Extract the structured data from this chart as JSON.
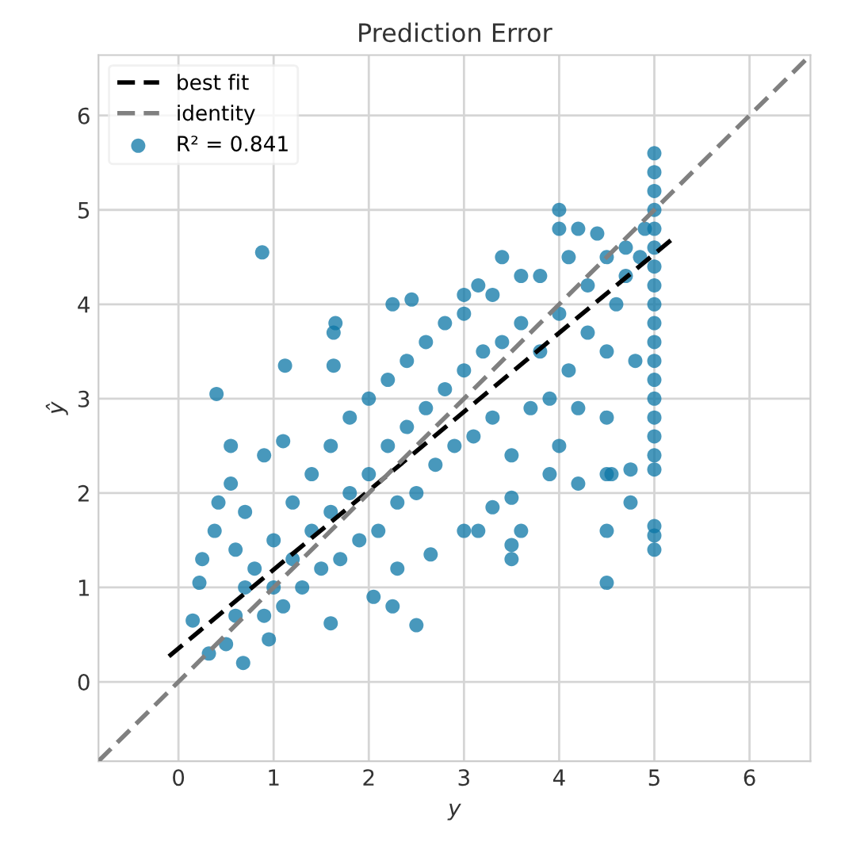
{
  "chart_data": {
    "type": "scatter",
    "title": "Prediction Error",
    "xlabel": "y",
    "ylabel": "ŷ",
    "xlim": [
      -0.84,
      6.64
    ],
    "ylim": [
      -0.84,
      6.64
    ],
    "xticks": [
      0,
      1,
      2,
      3,
      4,
      5,
      6
    ],
    "yticks": [
      0,
      1,
      2,
      3,
      4,
      5,
      6
    ],
    "grid": true,
    "legend": "top left",
    "series": [
      {
        "type": "line",
        "name": "best fit",
        "color": "#000000",
        "line_style": "dashed",
        "x": [
          -0.1,
          5.2
        ],
        "values": [
          0.27,
          4.7
        ]
      },
      {
        "type": "line",
        "name": "identity",
        "color": "#808080",
        "line_style": "dashed",
        "x": [
          -0.84,
          6.64
        ],
        "values": [
          -0.84,
          6.64
        ]
      },
      {
        "name": "R² = 0.841",
        "color": "#0b76a5",
        "marker": "circle",
        "x": [
          0.88,
          0.4,
          1.12,
          0.55,
          0.9,
          1.1,
          0.55,
          0.42,
          0.38,
          0.25,
          0.22,
          0.15,
          0.32,
          0.68,
          0.95,
          1.6,
          2.5,
          2.25,
          2.05,
          1.65,
          1.63,
          1.63,
          2.25,
          2.45,
          3.0,
          3.15,
          3.4,
          4.0,
          4.0,
          4.2,
          4.4,
          4.5,
          4.7,
          3.0,
          3.15,
          3.5,
          3.5,
          3.6,
          3.5,
          4.5,
          4.5,
          4.5,
          4.55,
          4.75,
          4.75,
          4.2,
          3.9,
          4.0,
          4.5,
          3.3,
          2.65,
          2.3,
          5,
          5,
          5,
          5,
          5,
          5,
          5,
          5,
          5,
          5,
          5,
          5,
          5,
          5,
          5,
          5,
          5,
          5,
          5,
          5,
          5,
          0.5,
          0.6,
          0.7,
          0.6,
          0.7,
          0.8,
          0.9,
          1.0,
          1.0,
          1.1,
          1.2,
          1.2,
          1.3,
          1.4,
          1.4,
          1.5,
          1.6,
          1.6,
          1.7,
          1.8,
          1.8,
          1.9,
          2.0,
          2.0,
          2.1,
          2.2,
          2.2,
          2.3,
          2.4,
          2.4,
          2.5,
          2.6,
          2.6,
          2.7,
          2.8,
          2.8,
          2.9,
          3.0,
          3.0,
          3.1,
          3.2,
          3.3,
          3.3,
          3.4,
          3.5,
          3.6,
          3.6,
          3.7,
          3.8,
          3.8,
          3.9,
          4.0,
          4.1,
          4.1,
          4.2,
          4.3,
          4.3,
          4.5,
          4.6,
          4.7,
          4.8,
          4.85,
          4.9
        ],
        "values": [
          4.55,
          3.05,
          3.35,
          2.5,
          2.4,
          2.55,
          2.1,
          1.9,
          1.6,
          1.3,
          1.05,
          0.65,
          0.3,
          0.2,
          0.45,
          0.62,
          0.6,
          0.8,
          0.9,
          3.8,
          3.7,
          3.35,
          4.0,
          4.05,
          4.1,
          4.2,
          4.5,
          5.0,
          4.8,
          4.8,
          4.75,
          4.5,
          4.6,
          1.6,
          1.6,
          1.3,
          1.45,
          1.6,
          1.95,
          1.05,
          1.6,
          2.2,
          2.2,
          1.9,
          2.25,
          2.1,
          2.2,
          2.5,
          2.8,
          1.85,
          1.35,
          1.2,
          1.4,
          1.55,
          1.65,
          2.25,
          2.4,
          2.6,
          2.8,
          3.0,
          3.2,
          3.4,
          3.6,
          3.8,
          4.0,
          4.2,
          4.4,
          4.6,
          4.8,
          5.0,
          5.2,
          5.4,
          5.6,
          0.4,
          0.7,
          1.0,
          1.4,
          1.8,
          1.2,
          0.7,
          1.0,
          1.5,
          0.8,
          1.3,
          1.9,
          1.0,
          1.6,
          2.2,
          1.2,
          1.8,
          2.5,
          1.3,
          2.0,
          2.8,
          1.5,
          2.2,
          3.0,
          1.6,
          2.5,
          3.2,
          1.9,
          2.7,
          3.4,
          2.0,
          2.9,
          3.6,
          2.3,
          3.1,
          3.8,
          2.5,
          3.3,
          3.9,
          2.6,
          3.5,
          4.1,
          2.8,
          3.6,
          2.4,
          3.8,
          4.3,
          2.9,
          3.5,
          4.3,
          3.0,
          3.9,
          3.3,
          4.5,
          2.9,
          3.7,
          4.2,
          3.5,
          4.0,
          4.3,
          3.4,
          4.5,
          4.8
        ]
      }
    ]
  }
}
